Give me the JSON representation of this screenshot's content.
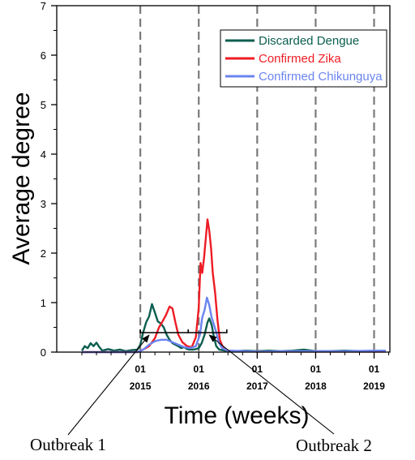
{
  "chart_data": {
    "type": "line",
    "title": "",
    "xlabel": "Time (weeks)",
    "ylabel": "Average degree",
    "ylim": [
      0,
      7
    ],
    "yticks": [
      "0",
      "1",
      "2",
      "3",
      "4",
      "5",
      "6",
      "7"
    ],
    "xlim": [
      2013.57,
      2019.27
    ],
    "xticks": [
      {
        "value": 2015,
        "top": "01",
        "bottom": "2015"
      },
      {
        "value": 2016,
        "top": "01",
        "bottom": "2016"
      },
      {
        "value": 2017,
        "top": "01",
        "bottom": "2017"
      },
      {
        "value": 2018,
        "top": "01",
        "bottom": "2018"
      },
      {
        "value": 2019,
        "top": "01",
        "bottom": "2019"
      }
    ],
    "vlines": [
      2015,
      2016,
      2017,
      2018,
      2019
    ],
    "legend_position": "top-right",
    "series": [
      {
        "name": "Discarded Dengue",
        "color": "#0b5e4f",
        "points": [
          [
            2014.0,
            0.03
          ],
          [
            2014.05,
            0.12
          ],
          [
            2014.1,
            0.08
          ],
          [
            2014.15,
            0.18
          ],
          [
            2014.2,
            0.12
          ],
          [
            2014.25,
            0.19
          ],
          [
            2014.3,
            0.1
          ],
          [
            2014.35,
            0.03
          ],
          [
            2014.45,
            0.06
          ],
          [
            2014.55,
            0.03
          ],
          [
            2014.65,
            0.05
          ],
          [
            2014.75,
            0.02
          ],
          [
            2014.85,
            0.04
          ],
          [
            2014.95,
            0.05
          ],
          [
            2015.0,
            0.15
          ],
          [
            2015.05,
            0.4
          ],
          [
            2015.1,
            0.6
          ],
          [
            2015.15,
            0.72
          ],
          [
            2015.2,
            0.97
          ],
          [
            2015.25,
            0.8
          ],
          [
            2015.3,
            0.62
          ],
          [
            2015.35,
            0.58
          ],
          [
            2015.4,
            0.5
          ],
          [
            2015.45,
            0.35
          ],
          [
            2015.5,
            0.25
          ],
          [
            2015.55,
            0.18
          ],
          [
            2015.6,
            0.15
          ],
          [
            2015.65,
            0.12
          ],
          [
            2015.7,
            0.08
          ],
          [
            2015.75,
            0.1
          ],
          [
            2015.8,
            0.06
          ],
          [
            2015.85,
            0.05
          ],
          [
            2015.9,
            0.05
          ],
          [
            2015.95,
            0.06
          ],
          [
            2016.0,
            0.08
          ],
          [
            2016.05,
            0.18
          ],
          [
            2016.1,
            0.35
          ],
          [
            2016.15,
            0.6
          ],
          [
            2016.18,
            0.68
          ],
          [
            2016.22,
            0.55
          ],
          [
            2016.26,
            0.3
          ],
          [
            2016.3,
            0.12
          ],
          [
            2016.35,
            0.05
          ],
          [
            2016.45,
            0.03
          ],
          [
            2016.6,
            0.02
          ],
          [
            2016.8,
            0.03
          ],
          [
            2017.0,
            0.02
          ],
          [
            2017.2,
            0.03
          ],
          [
            2017.4,
            0.02
          ],
          [
            2017.6,
            0.03
          ],
          [
            2017.8,
            0.05
          ],
          [
            2018.0,
            0.02
          ],
          [
            2018.2,
            0.02
          ],
          [
            2018.5,
            0.03
          ],
          [
            2018.8,
            0.02
          ],
          [
            2019.0,
            0.02
          ],
          [
            2019.2,
            0.02
          ]
        ]
      },
      {
        "name": "Confirmed Zika",
        "color": "#ee1c24",
        "points": [
          [
            2014.0,
            0.0
          ],
          [
            2014.5,
            0.0
          ],
          [
            2014.95,
            0.0
          ],
          [
            2015.05,
            0.05
          ],
          [
            2015.15,
            0.12
          ],
          [
            2015.25,
            0.28
          ],
          [
            2015.32,
            0.5
          ],
          [
            2015.38,
            0.62
          ],
          [
            2015.44,
            0.75
          ],
          [
            2015.5,
            0.92
          ],
          [
            2015.55,
            0.88
          ],
          [
            2015.6,
            0.6
          ],
          [
            2015.65,
            0.35
          ],
          [
            2015.72,
            0.2
          ],
          [
            2015.8,
            0.12
          ],
          [
            2015.88,
            0.1
          ],
          [
            2015.95,
            0.3
          ],
          [
            2016.0,
            0.9
          ],
          [
            2016.03,
            1.8
          ],
          [
            2016.06,
            1.6
          ],
          [
            2016.09,
            1.9
          ],
          [
            2016.12,
            2.3
          ],
          [
            2016.15,
            2.68
          ],
          [
            2016.18,
            2.45
          ],
          [
            2016.21,
            2.1
          ],
          [
            2016.24,
            1.6
          ],
          [
            2016.28,
            1.2
          ],
          [
            2016.32,
            0.65
          ],
          [
            2016.36,
            0.25
          ],
          [
            2016.42,
            0.08
          ],
          [
            2016.5,
            0.03
          ],
          [
            2016.7,
            0.02
          ],
          [
            2017.0,
            0.01
          ],
          [
            2017.5,
            0.01
          ],
          [
            2018.0,
            0.01
          ],
          [
            2019.0,
            0.01
          ],
          [
            2019.2,
            0.01
          ]
        ]
      },
      {
        "name": "Confirmed Chikunguya",
        "color": "#6b84f0",
        "points": [
          [
            2014.0,
            0.0
          ],
          [
            2014.5,
            0.0
          ],
          [
            2014.95,
            0.0
          ],
          [
            2015.05,
            0.05
          ],
          [
            2015.15,
            0.15
          ],
          [
            2015.25,
            0.22
          ],
          [
            2015.35,
            0.25
          ],
          [
            2015.45,
            0.25
          ],
          [
            2015.55,
            0.2
          ],
          [
            2015.65,
            0.15
          ],
          [
            2015.75,
            0.1
          ],
          [
            2015.85,
            0.08
          ],
          [
            2015.95,
            0.12
          ],
          [
            2016.02,
            0.35
          ],
          [
            2016.06,
            0.7
          ],
          [
            2016.1,
            0.85
          ],
          [
            2016.14,
            1.1
          ],
          [
            2016.18,
            0.95
          ],
          [
            2016.22,
            0.7
          ],
          [
            2016.26,
            0.55
          ],
          [
            2016.3,
            0.4
          ],
          [
            2016.34,
            0.2
          ],
          [
            2016.4,
            0.08
          ],
          [
            2016.5,
            0.03
          ],
          [
            2016.8,
            0.02
          ],
          [
            2017.0,
            0.01
          ],
          [
            2017.5,
            0.02
          ],
          [
            2018.0,
            0.02
          ],
          [
            2018.5,
            0.02
          ],
          [
            2019.0,
            0.03
          ],
          [
            2019.2,
            0.03
          ]
        ]
      }
    ],
    "annotations": [
      {
        "text": "Outbreak 1",
        "bracket": [
          2015.0,
          2015.82
        ],
        "target": 2015.15
      },
      {
        "text": "Outbreak 2",
        "bracket": [
          2015.82,
          2016.48
        ],
        "target": 2016.18
      }
    ]
  }
}
